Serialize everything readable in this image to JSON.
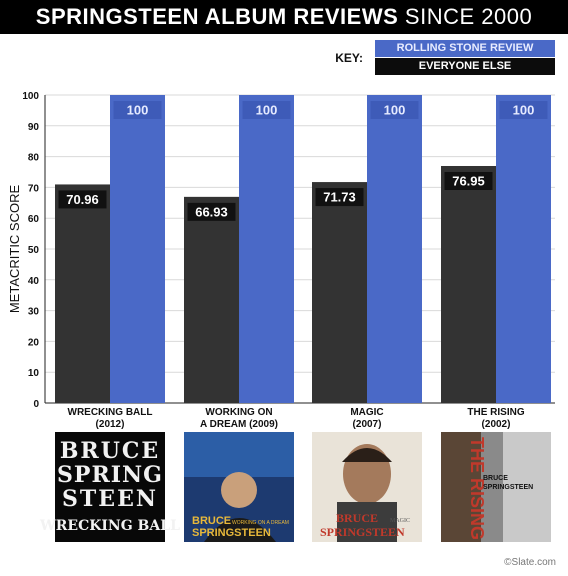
{
  "header": {
    "title_bold": "SPRINGSTEEN ALBUM REVIEWS",
    "title_light": "SINCE 2000"
  },
  "key": {
    "label": "KEY:",
    "rolling_stone": "ROLLING STONE REVIEW",
    "everyone_else": "EVERYONE ELSE"
  },
  "colors": {
    "rolling_stone": "#4a69c7",
    "everyone_else": "#333333",
    "label_bg": "#111111"
  },
  "credit": "©Slate.com",
  "albums": [
    {
      "line1": "WRECKING BALL",
      "line2": "(2012)",
      "cover_text": [
        "BRUCE",
        "SPRING",
        "STEEN",
        "WRECKING BALL"
      ]
    },
    {
      "line1": "WORKING ON",
      "line2": "A DREAM (2009)",
      "cover_text": [
        "BRUCE",
        "SPRINGSTEEN",
        "WORKING ON A DREAM"
      ]
    },
    {
      "line1": "MAGIC",
      "line2": "(2007)",
      "cover_text": [
        "BRUCE",
        "SPRINGSTEEN",
        "MAGIC"
      ]
    },
    {
      "line1": "THE RISING",
      "line2": "(2002)",
      "cover_text": [
        "THE RISING",
        "BRUCE",
        "SPRINGSTEEN"
      ]
    }
  ],
  "chart_data": {
    "type": "bar",
    "title": "SPRINGSTEEN ALBUM REVIEWS SINCE 2000",
    "ylabel": "METACRITIC SCORE",
    "xlabel": "",
    "ylim": [
      0,
      100
    ],
    "yticks": [
      0,
      10,
      20,
      30,
      40,
      50,
      60,
      70,
      80,
      90,
      100
    ],
    "grid": true,
    "legend": "top-right",
    "categories": [
      "WRECKING BALL (2012)",
      "WORKING ON A DREAM (2009)",
      "MAGIC (2007)",
      "THE RISING (2002)"
    ],
    "series": [
      {
        "name": "EVERYONE ELSE",
        "values": [
          70.96,
          66.93,
          71.73,
          76.95
        ],
        "labels": [
          "70.96",
          "66.93",
          "71.73",
          "76.95"
        ]
      },
      {
        "name": "ROLLING STONE REVIEW",
        "values": [
          100,
          100,
          100,
          100
        ],
        "labels": [
          "100",
          "100",
          "100",
          "100"
        ]
      }
    ]
  }
}
